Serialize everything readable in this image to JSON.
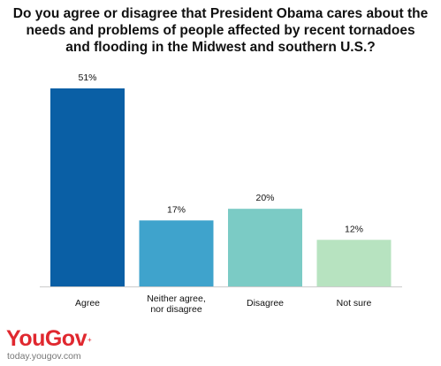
{
  "title_lines": [
    "Do you agree or disagree that President Obama cares about the",
    "needs and problems of people affected by recent tornadoes",
    "and flooding in the Midwest and southern U.S.?"
  ],
  "colors": {
    "bars": [
      "#0a5fa5",
      "#3fa3cc",
      "#7bcbc5",
      "#b7e3c0"
    ],
    "text": "#111111",
    "axis": "#cccccc",
    "brand": "#e0282f"
  },
  "chart_data": {
    "type": "bar",
    "title": "Do you agree or disagree that President Obama cares about the needs and problems of people affected by recent tornadoes and flooding in the Midwest and southern U.S.?",
    "categories": [
      [
        "Agree"
      ],
      [
        "Neither agree,",
        "nor disagree"
      ],
      [
        "Disagree"
      ],
      [
        "Not sure"
      ]
    ],
    "values": [
      51,
      17,
      20,
      12
    ],
    "value_labels": [
      "51%",
      "17%",
      "20%",
      "12%"
    ],
    "ylim": [
      0,
      51
    ],
    "grid": false,
    "xlabel": "",
    "ylabel": ""
  },
  "footer": {
    "logo": "YouGov",
    "url": "today.yougov.com"
  }
}
